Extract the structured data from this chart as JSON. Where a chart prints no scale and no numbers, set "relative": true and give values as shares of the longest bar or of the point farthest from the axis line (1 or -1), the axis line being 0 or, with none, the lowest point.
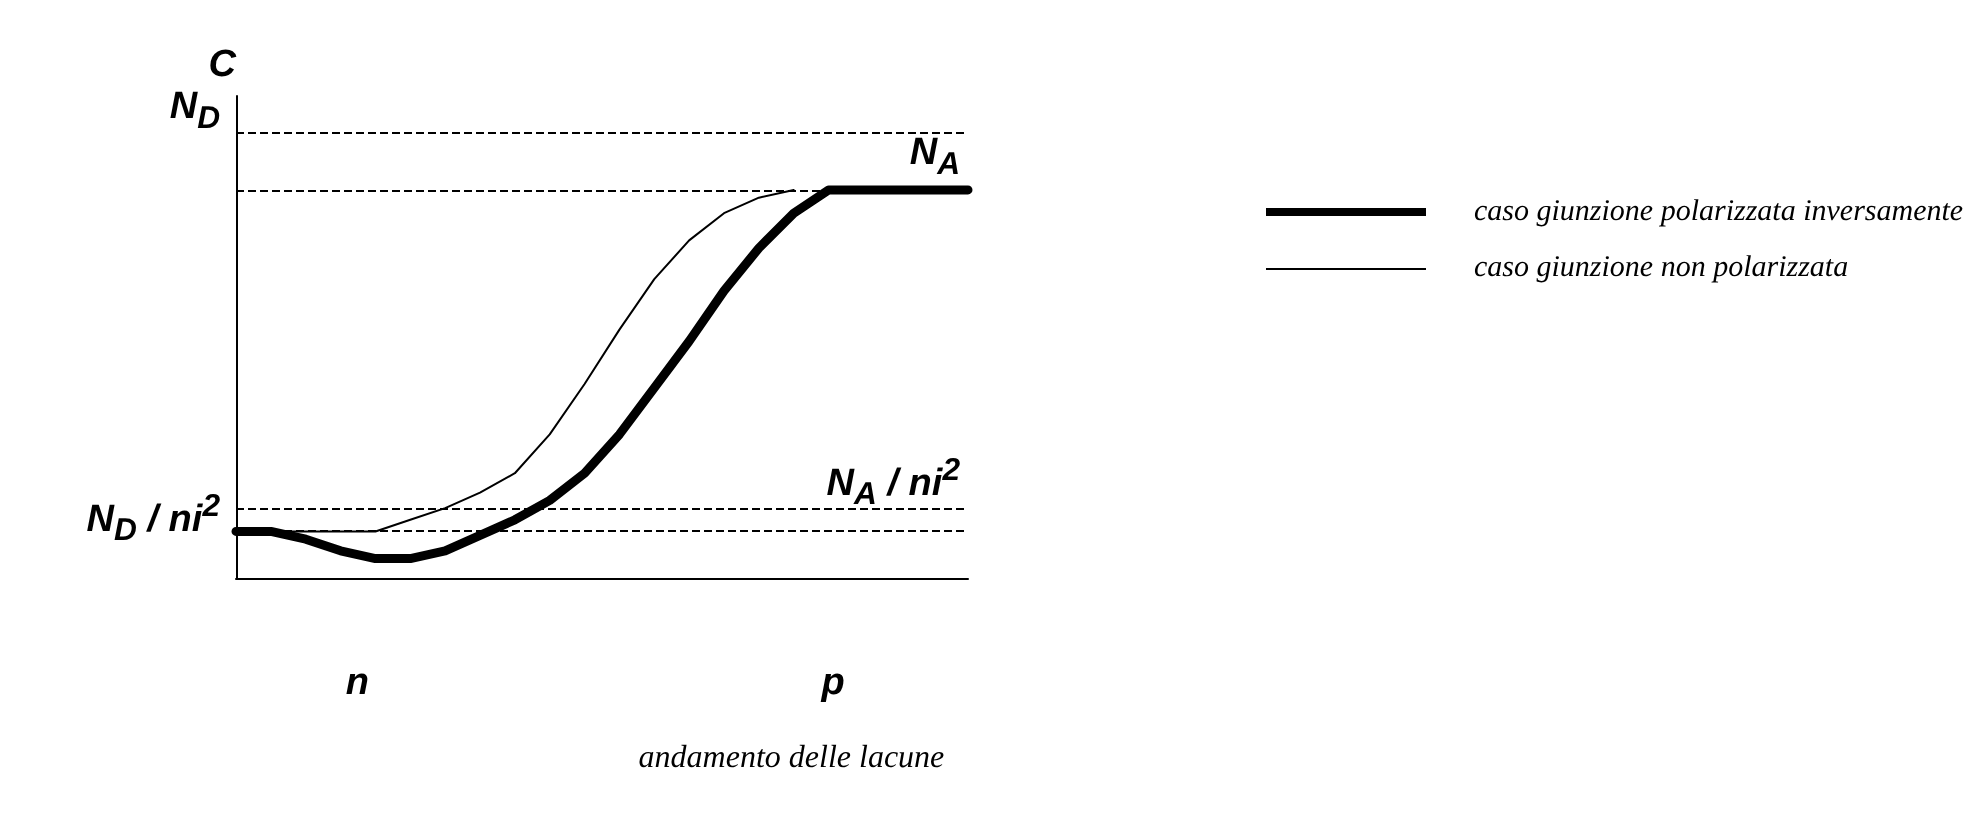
{
  "chart_data": {
    "type": "line",
    "relative": true,
    "ylabel": "C",
    "categories": [
      null,
      null,
      null,
      null,
      null,
      null,
      null,
      null,
      null,
      null,
      null,
      null,
      null,
      null,
      null,
      null,
      null,
      null,
      null,
      null,
      null,
      null
    ],
    "series": [
      {
        "name": "caso giunzione polarizzata inversamente",
        "color": "#000000",
        "values": [
          0.12,
          0.12,
          0.1,
          0.07,
          0.05,
          0.05,
          0.07,
          0.11,
          0.15,
          0.2,
          0.27,
          0.37,
          0.49,
          0.61,
          0.74,
          0.85,
          0.94,
          1,
          1,
          1,
          1,
          1
        ]
      },
      {
        "name": "caso giunzione non polarizzata",
        "color": "#000000",
        "values": [
          0.12,
          0.12,
          0.12,
          0.12,
          0.12,
          0.15,
          0.18,
          0.22,
          0.27,
          0.37,
          0.5,
          0.64,
          0.77,
          0.87,
          0.94,
          0.98,
          1,
          null,
          null,
          null,
          null,
          null
        ]
      }
    ],
    "ref_lines": [
      {
        "axis": "y",
        "value": 1.15,
        "label": "N$_{D}$",
        "line_style": "dashed"
      },
      {
        "axis": "y",
        "value": 1,
        "label": "N$_{A}$",
        "line_style": "dashed"
      },
      {
        "axis": "y",
        "value": 0.18,
        "label": "N$_{A}$ / ni$^{2}$",
        "line_style": "dashed"
      },
      {
        "axis": "y",
        "value": 0.12,
        "label": "N$_{D}$ / ni$^{2}$",
        "line_style": "dashed"
      }
    ],
    "annotations": [
      "n",
      "p",
      "andamento delle lacune"
    ],
    "legend": "right",
    "grid": false,
    "marker": "none",
    "line_style": "solid"
  }
}
